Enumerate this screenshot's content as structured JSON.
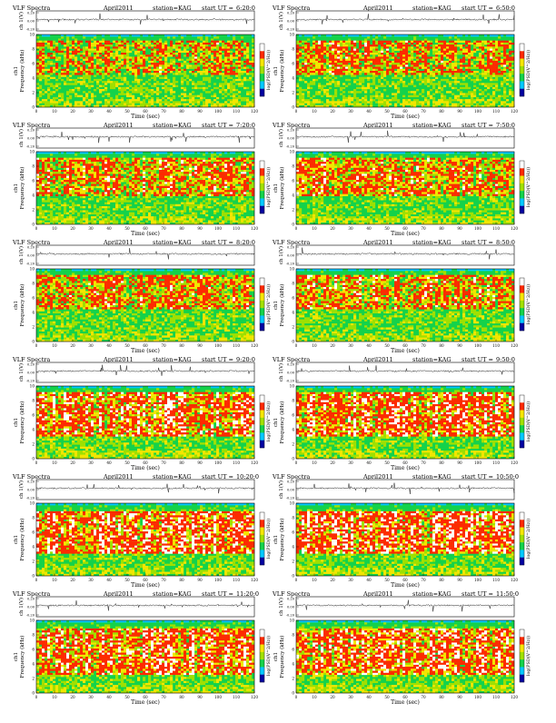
{
  "page": {
    "heading_left": "VLF Spectra",
    "date": "April2011",
    "station": "station=KAG",
    "start_prefix": "start UT =",
    "ch1_axis_label": "ch 1(V)",
    "freq_axis_label_top": "ch1",
    "freq_axis_label": "Frequency (kHz)",
    "time_axis_label": "Time (sec)",
    "colorbar_label": "log(PSD(V^2/Hz))",
    "ch1_tick_labels": [
      "0.20",
      "0.00",
      "-0.20"
    ],
    "freq_tick_labels": [
      "0",
      "2",
      "4",
      "6",
      "8",
      "10"
    ],
    "time_tick_labels": [
      "0",
      "10",
      "20",
      "30",
      "40",
      "50",
      "60",
      "70",
      "80",
      "90",
      "100",
      "110",
      "120"
    ]
  },
  "chart_data": [
    {
      "type": "heatmap",
      "title": "VLF Spectra April2011 station=KAG start UT =6:20:0",
      "start_ut": "6:20:0",
      "xlabel": "Time (sec)",
      "ylabel": "Frequency (kHz)",
      "xlim": [
        0,
        120
      ],
      "ylim": [
        0,
        10
      ],
      "ch1_ylim": [
        -0.2,
        0.2
      ],
      "colorbar": "log(PSD(V^2/Hz))",
      "colors": [
        "#0000a0",
        "#00c8ff",
        "#14d24b",
        "#a0e000",
        "#f5e600",
        "#ff2a00",
        "#ffffff"
      ],
      "dominant_band_khz": [
        4.5,
        9.5
      ],
      "intensity": 0.55
    },
    {
      "type": "heatmap",
      "title": "VLF Spectra April2011 station=KAG start UT =6:50:0",
      "start_ut": "6:50:0",
      "xlabel": "Time (sec)",
      "ylabel": "Frequency (kHz)",
      "xlim": [
        0,
        120
      ],
      "ylim": [
        0,
        10
      ],
      "ch1_ylim": [
        -0.2,
        0.2
      ],
      "colorbar": "log(PSD(V^2/Hz))",
      "colors": [
        "#0000a0",
        "#00c8ff",
        "#14d24b",
        "#a0e000",
        "#f5e600",
        "#ff2a00",
        "#ffffff"
      ],
      "dominant_band_khz": [
        4.5,
        9.5
      ],
      "intensity": 0.58
    },
    {
      "type": "heatmap",
      "title": "VLF Spectra April2011 station=KAG start UT =7:20:0",
      "start_ut": "7:20:0",
      "xlabel": "Time (sec)",
      "ylabel": "Frequency (kHz)",
      "xlim": [
        0,
        120
      ],
      "ylim": [
        0,
        10
      ],
      "ch1_ylim": [
        -0.2,
        0.2
      ],
      "colorbar": "log(PSD(V^2/Hz))",
      "colors": [
        "#0000a0",
        "#00c8ff",
        "#14d24b",
        "#a0e000",
        "#f5e600",
        "#ff2a00",
        "#ffffff"
      ],
      "dominant_band_khz": [
        4.0,
        9.5
      ],
      "intensity": 0.65
    },
    {
      "type": "heatmap",
      "title": "VLF Spectra April2011 station=KAG start UT =7:50:0",
      "start_ut": "7:50:0",
      "xlabel": "Time (sec)",
      "ylabel": "Frequency (kHz)",
      "xlim": [
        0,
        120
      ],
      "ylim": [
        0,
        10
      ],
      "ch1_ylim": [
        -0.2,
        0.2
      ],
      "colorbar": "log(PSD(V^2/Hz))",
      "colors": [
        "#0000a0",
        "#00c8ff",
        "#14d24b",
        "#a0e000",
        "#f5e600",
        "#ff2a00",
        "#ffffff"
      ],
      "dominant_band_khz": [
        4.0,
        9.5
      ],
      "intensity": 0.66
    },
    {
      "type": "heatmap",
      "title": "VLF Spectra April2011 station=KAG start UT =8:20:0",
      "start_ut": "8:20:0",
      "xlabel": "Time (sec)",
      "ylabel": "Frequency (kHz)",
      "xlim": [
        0,
        120
      ],
      "ylim": [
        0,
        10
      ],
      "ch1_ylim": [
        -0.2,
        0.2
      ],
      "colorbar": "log(PSD(V^2/Hz))",
      "colors": [
        "#0000a0",
        "#00c8ff",
        "#14d24b",
        "#a0e000",
        "#f5e600",
        "#ff2a00",
        "#ffffff"
      ],
      "dominant_band_khz": [
        4.5,
        9.5
      ],
      "intensity": 0.6
    },
    {
      "type": "heatmap",
      "title": "VLF Spectra April2011 station=KAG start UT =8:50:0",
      "start_ut": "8:50:0",
      "xlabel": "Time (sec)",
      "ylabel": "Frequency (kHz)",
      "xlim": [
        0,
        120
      ],
      "ylim": [
        0,
        10
      ],
      "ch1_ylim": [
        -0.2,
        0.2
      ],
      "colorbar": "log(PSD(V^2/Hz))",
      "colors": [
        "#0000a0",
        "#00c8ff",
        "#14d24b",
        "#a0e000",
        "#f5e600",
        "#ff2a00",
        "#ffffff"
      ],
      "dominant_band_khz": [
        4.5,
        9.5
      ],
      "intensity": 0.62
    },
    {
      "type": "heatmap",
      "title": "VLF Spectra April2011 station=KAG start UT =9:20:0",
      "start_ut": "9:20:0",
      "xlabel": "Time (sec)",
      "ylabel": "Frequency (kHz)",
      "xlim": [
        0,
        120
      ],
      "ylim": [
        0,
        10
      ],
      "ch1_ylim": [
        -0.2,
        0.2
      ],
      "colorbar": "log(PSD(V^2/Hz))",
      "colors": [
        "#0000a0",
        "#00c8ff",
        "#14d24b",
        "#a0e000",
        "#f5e600",
        "#ff2a00",
        "#ffffff"
      ],
      "dominant_band_khz": [
        3.0,
        9.5
      ],
      "intensity": 0.72
    },
    {
      "type": "heatmap",
      "title": "VLF Spectra April2011 station=KAG start UT =9:50:0",
      "start_ut": "9:50:0",
      "xlabel": "Time (sec)",
      "ylabel": "Frequency (kHz)",
      "xlim": [
        0,
        120
      ],
      "ylim": [
        0,
        10
      ],
      "ch1_ylim": [
        -0.2,
        0.2
      ],
      "colorbar": "log(PSD(V^2/Hz))",
      "colors": [
        "#0000a0",
        "#00c8ff",
        "#14d24b",
        "#a0e000",
        "#f5e600",
        "#ff2a00",
        "#ffffff"
      ],
      "dominant_band_khz": [
        3.0,
        9.5
      ],
      "intensity": 0.72
    },
    {
      "type": "heatmap",
      "title": "VLF Spectra April2011 station=KAG start UT =10:20:0",
      "start_ut": "10:20:0",
      "xlabel": "Time (sec)",
      "ylabel": "Frequency (kHz)",
      "xlim": [
        0,
        120
      ],
      "ylim": [
        0,
        10
      ],
      "ch1_ylim": [
        -0.2,
        0.2
      ],
      "colorbar": "log(PSD(V^2/Hz))",
      "colors": [
        "#0000a0",
        "#00c8ff",
        "#14d24b",
        "#a0e000",
        "#f5e600",
        "#ff2a00",
        "#ffffff"
      ],
      "dominant_band_khz": [
        3.0,
        9.0
      ],
      "intensity": 0.78
    },
    {
      "type": "heatmap",
      "title": "VLF Spectra April2011 station=KAG start UT =10:50:0",
      "start_ut": "10:50:0",
      "xlabel": "Time (sec)",
      "ylabel": "Frequency (kHz)",
      "xlim": [
        0,
        120
      ],
      "ylim": [
        0,
        10
      ],
      "ch1_ylim": [
        -0.2,
        0.2
      ],
      "colorbar": "log(PSD(V^2/Hz))",
      "colors": [
        "#0000a0",
        "#00c8ff",
        "#14d24b",
        "#a0e000",
        "#f5e600",
        "#ff2a00",
        "#ffffff"
      ],
      "dominant_band_khz": [
        3.0,
        9.0
      ],
      "intensity": 0.76
    },
    {
      "type": "heatmap",
      "title": "VLF Spectra April2011 station=KAG start UT =11:20:0",
      "start_ut": "11:20:0",
      "xlabel": "Time (sec)",
      "ylabel": "Frequency (kHz)",
      "xlim": [
        0,
        120
      ],
      "ylim": [
        0,
        10
      ],
      "ch1_ylim": [
        -0.2,
        0.2
      ],
      "colorbar": "log(PSD(V^2/Hz))",
      "colors": [
        "#0000a0",
        "#00c8ff",
        "#14d24b",
        "#a0e000",
        "#f5e600",
        "#ff2a00",
        "#ffffff"
      ],
      "dominant_band_khz": [
        2.5,
        9.0
      ],
      "intensity": 0.74
    },
    {
      "type": "heatmap",
      "title": "VLF Spectra April2011 station=KAG start UT =11:50:0",
      "start_ut": "11:50:0",
      "xlabel": "Time (sec)",
      "ylabel": "Frequency (kHz)",
      "xlim": [
        0,
        120
      ],
      "ylim": [
        0,
        10
      ],
      "ch1_ylim": [
        -0.2,
        0.2
      ],
      "colorbar": "log(PSD(V^2/Hz))",
      "colors": [
        "#0000a0",
        "#00c8ff",
        "#14d24b",
        "#a0e000",
        "#f5e600",
        "#ff2a00",
        "#ffffff"
      ],
      "dominant_band_khz": [
        2.5,
        9.0
      ],
      "intensity": 0.72
    }
  ]
}
